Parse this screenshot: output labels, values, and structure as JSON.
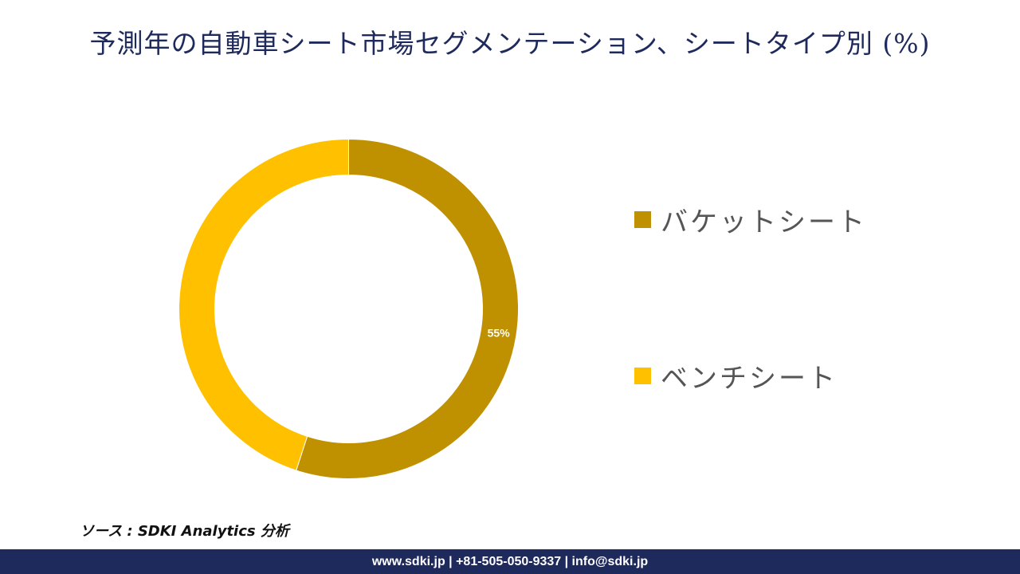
{
  "title": "予測年の自動車シート市場セグメンテーション、シートタイプ別 (%)",
  "chart_data": {
    "type": "donut",
    "title": "予測年の自動車シート市場セグメンテーション、シートタイプ別 (%)",
    "series": [
      {
        "name": "バケットシート",
        "value": 55,
        "label": "55%",
        "color": "#bf9000"
      },
      {
        "name": "ベンチシート",
        "value": 45,
        "label": "",
        "color": "#ffc000"
      }
    ],
    "legend_position": "right"
  },
  "source": "ソース : SDKI Analytics 分析",
  "footer": "www.sdki.jp | +81-505-050-9337 | info@sdki.jp"
}
